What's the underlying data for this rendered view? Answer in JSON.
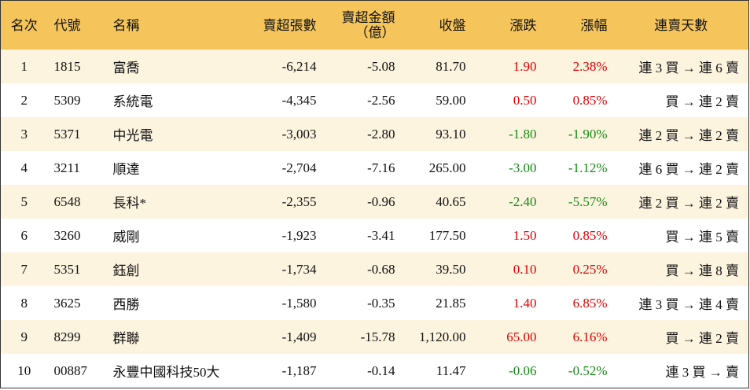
{
  "table": {
    "header": [
      "名次",
      "代號",
      "名稱",
      "賣超張數",
      "賣超金額\n（億）",
      "收盤",
      "漲跌",
      "漲幅",
      "連賣天數"
    ],
    "rows": [
      [
        "1",
        "1815",
        "富喬",
        "-6,214",
        "-5.08",
        "81.70",
        "1.90",
        "2.38%",
        "連 3 買 → 連 6 賣"
      ],
      [
        "2",
        "5309",
        "系統電",
        "-4,345",
        "-2.56",
        "59.00",
        "0.50",
        "0.85%",
        "買 → 連 2 賣"
      ],
      [
        "3",
        "5371",
        "中光電",
        "-3,003",
        "-2.80",
        "93.10",
        "-1.80",
        "-1.90%",
        "連 2 買 → 連 2 賣"
      ],
      [
        "4",
        "3211",
        "順達",
        "-2,704",
        "-7.16",
        "265.00",
        "-3.00",
        "-1.12%",
        "連 6 買 → 連 2 賣"
      ],
      [
        "5",
        "6548",
        "長科*",
        "-2,355",
        "-0.96",
        "40.65",
        "-2.40",
        "-5.57%",
        "連 2 買 → 連 2 賣"
      ],
      [
        "6",
        "3260",
        "威剛",
        "-1,923",
        "-3.41",
        "177.50",
        "1.50",
        "0.85%",
        "買 → 連 5 賣"
      ],
      [
        "7",
        "5351",
        "鈺創",
        "-1,734",
        "-0.68",
        "39.50",
        "0.10",
        "0.25%",
        "買 → 連 8 賣"
      ],
      [
        "8",
        "3625",
        "西勝",
        "-1,580",
        "-0.35",
        "21.85",
        "1.40",
        "6.85%",
        "連 3 買 → 連 4 賣"
      ],
      [
        "9",
        "8299",
        "群聯",
        "-1,409",
        "-15.78",
        "1,120.00",
        "65.00",
        "6.16%",
        "買 → 連 2 賣"
      ],
      [
        "10",
        "00887",
        "永豐中國科技50大",
        "-1,187",
        "-0.14",
        "11.47",
        "-0.06",
        "-0.52%",
        "連 3 買 → 賣"
      ]
    ]
  }
}
